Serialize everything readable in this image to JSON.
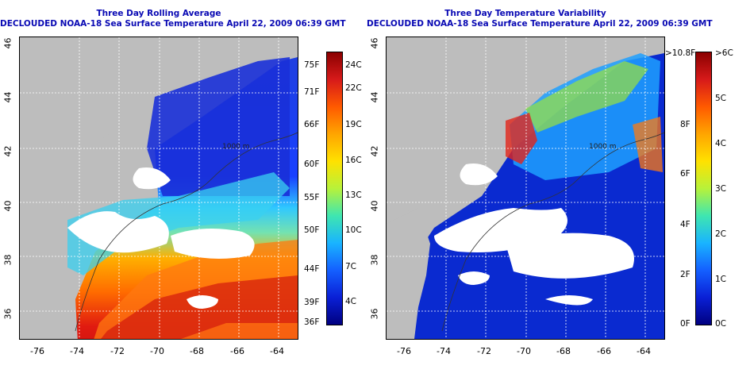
{
  "maps": [
    {
      "title_line1": "Three Day Rolling Average",
      "title_line2": "DECLOUDED NOAA-18 Sea Surface Temperature April 22, 2009 06:39 GMT",
      "lon_ticks": [
        "-76",
        "-74",
        "-72",
        "-70",
        "-68",
        "-66",
        "-64"
      ],
      "lat_ticks": [
        "46",
        "44",
        "42",
        "40",
        "38",
        "36"
      ],
      "contour_label": "1000 m",
      "colorbar": {
        "left_labels": [
          "75F",
          "71F",
          "66F",
          "60F",
          "55F",
          "50F",
          "44F",
          "39F",
          "36F"
        ],
        "right_labels": [
          "24C",
          "22C",
          "19C",
          "16C",
          "13C",
          "10C",
          "7C",
          "4C"
        ],
        "colors": [
          "#8b0000",
          "#d71a1a",
          "#ff5a00",
          "#ffa500",
          "#ffe100",
          "#b7f23a",
          "#3fe6b0",
          "#19b4ff",
          "#1460ff",
          "#0a20d6",
          "#000080"
        ]
      }
    },
    {
      "title_line1": "Three Day Temperature Variability",
      "title_line2": "DECLOUDED NOAA-18 Sea Surface Temperature April 22, 2009 06:39 GMT",
      "lon_ticks": [
        "-76",
        "-74",
        "-72",
        "-70",
        "-68",
        "-66",
        "-64"
      ],
      "lat_ticks": [
        "46",
        "44",
        "42",
        "40",
        "38",
        "36"
      ],
      "contour_label": "1000 m",
      "colorbar": {
        "left_labels": [
          ">10.8F",
          "8F",
          "6F",
          "4F",
          "2F",
          "0F"
        ],
        "right_labels": [
          ">6C",
          "5C",
          "4C",
          "3C",
          "2C",
          "1C",
          "0C"
        ],
        "colors": [
          "#8b0000",
          "#d71a1a",
          "#ff5a00",
          "#ffa500",
          "#ffe100",
          "#b7f23a",
          "#3fe6b0",
          "#19b4ff",
          "#1460ff",
          "#0a20d6",
          "#000080"
        ]
      }
    }
  ]
}
